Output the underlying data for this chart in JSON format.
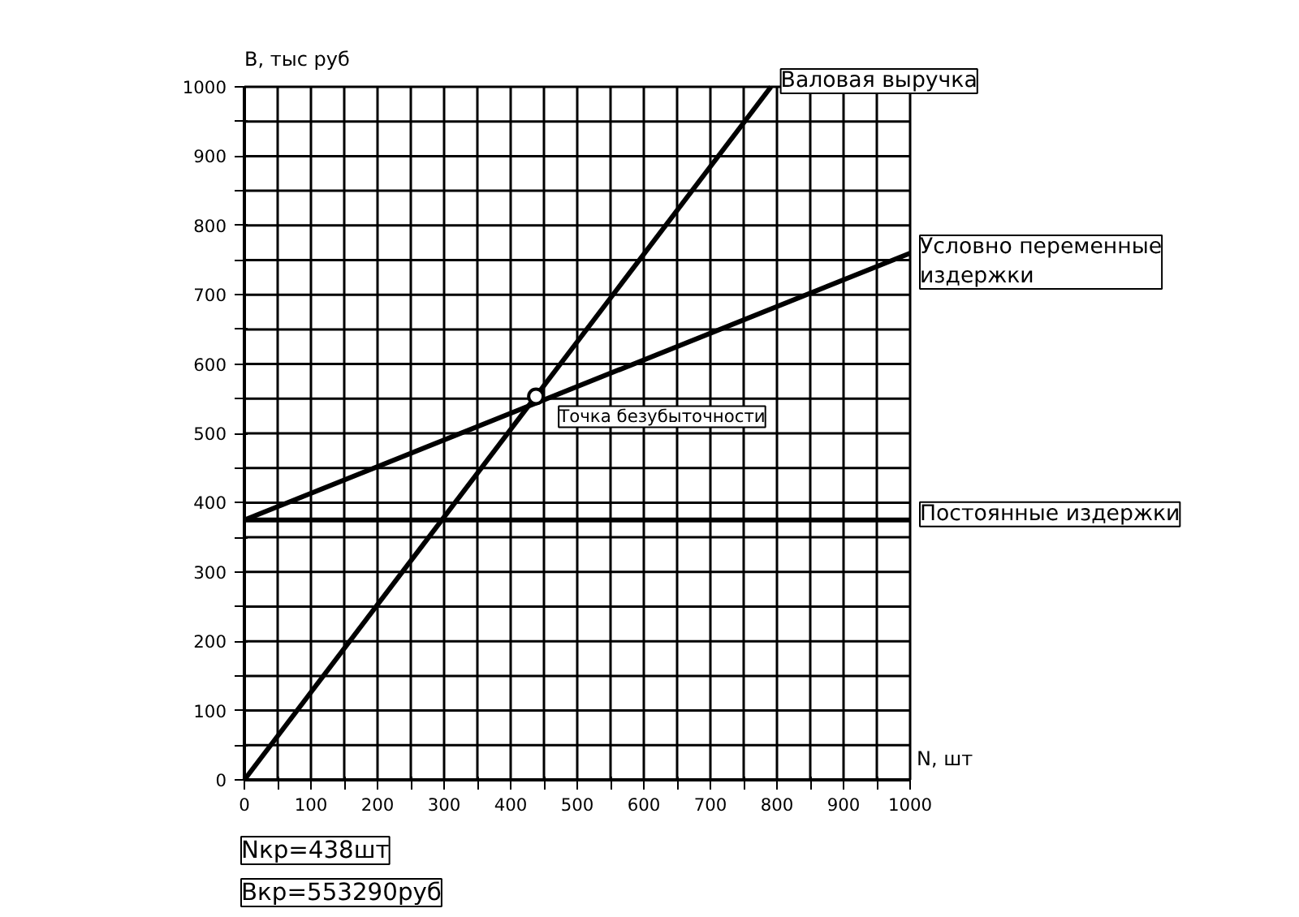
{
  "chart_data": {
    "type": "line",
    "xlabel": "N, шт",
    "ylabel": "В, тыс руб",
    "series": [
      {
        "name": "Валовая выручка",
        "color": "#000000",
        "x": [
          0,
          791
        ],
        "values": [
          0,
          1000
        ]
      },
      {
        "name": "Условно переменные издержки",
        "color": "#000000",
        "x": [
          0,
          1000
        ],
        "values": [
          375,
          760
        ]
      },
      {
        "name": "Постоянные издержки",
        "color": "#000000",
        "x": [
          0,
          1000
        ],
        "values": [
          375,
          375
        ]
      }
    ],
    "xlim": [
      0,
      1000
    ],
    "ylim": [
      0,
      1000
    ],
    "xticks": [
      0,
      {
        "value": 50,
        "label": null
      },
      100,
      {
        "value": 150,
        "label": null
      },
      200,
      {
        "value": 250,
        "label": null
      },
      300,
      {
        "value": 350,
        "label": null
      },
      400,
      {
        "value": 450,
        "label": null
      },
      500,
      {
        "value": 550,
        "label": null
      },
      600,
      {
        "value": 650,
        "label": null
      },
      700,
      {
        "value": 750,
        "label": null
      },
      800,
      {
        "value": 850,
        "label": null
      },
      900,
      {
        "value": 950,
        "label": null
      },
      1000
    ],
    "yticks": [
      0,
      {
        "value": 50,
        "label": null
      },
      100,
      {
        "value": 150,
        "label": null
      },
      200,
      {
        "value": 250,
        "label": null
      },
      300,
      {
        "value": 350,
        "label": null
      },
      400,
      {
        "value": 450,
        "label": null
      },
      500,
      {
        "value": 550,
        "label": null
      },
      600,
      {
        "value": 650,
        "label": null
      },
      700,
      {
        "value": 750,
        "label": null
      },
      800,
      {
        "value": 850,
        "label": null
      },
      900,
      {
        "value": 950,
        "label": null
      },
      1000
    ],
    "grid": true,
    "legend": false,
    "marker": "none",
    "line_style": "solid",
    "annotations": [
      {
        "text": "Точка безубыточности",
        "x": 438,
        "y": 553.29
      },
      "Nкр=438шт",
      "Вкр=553290руб"
    ]
  }
}
